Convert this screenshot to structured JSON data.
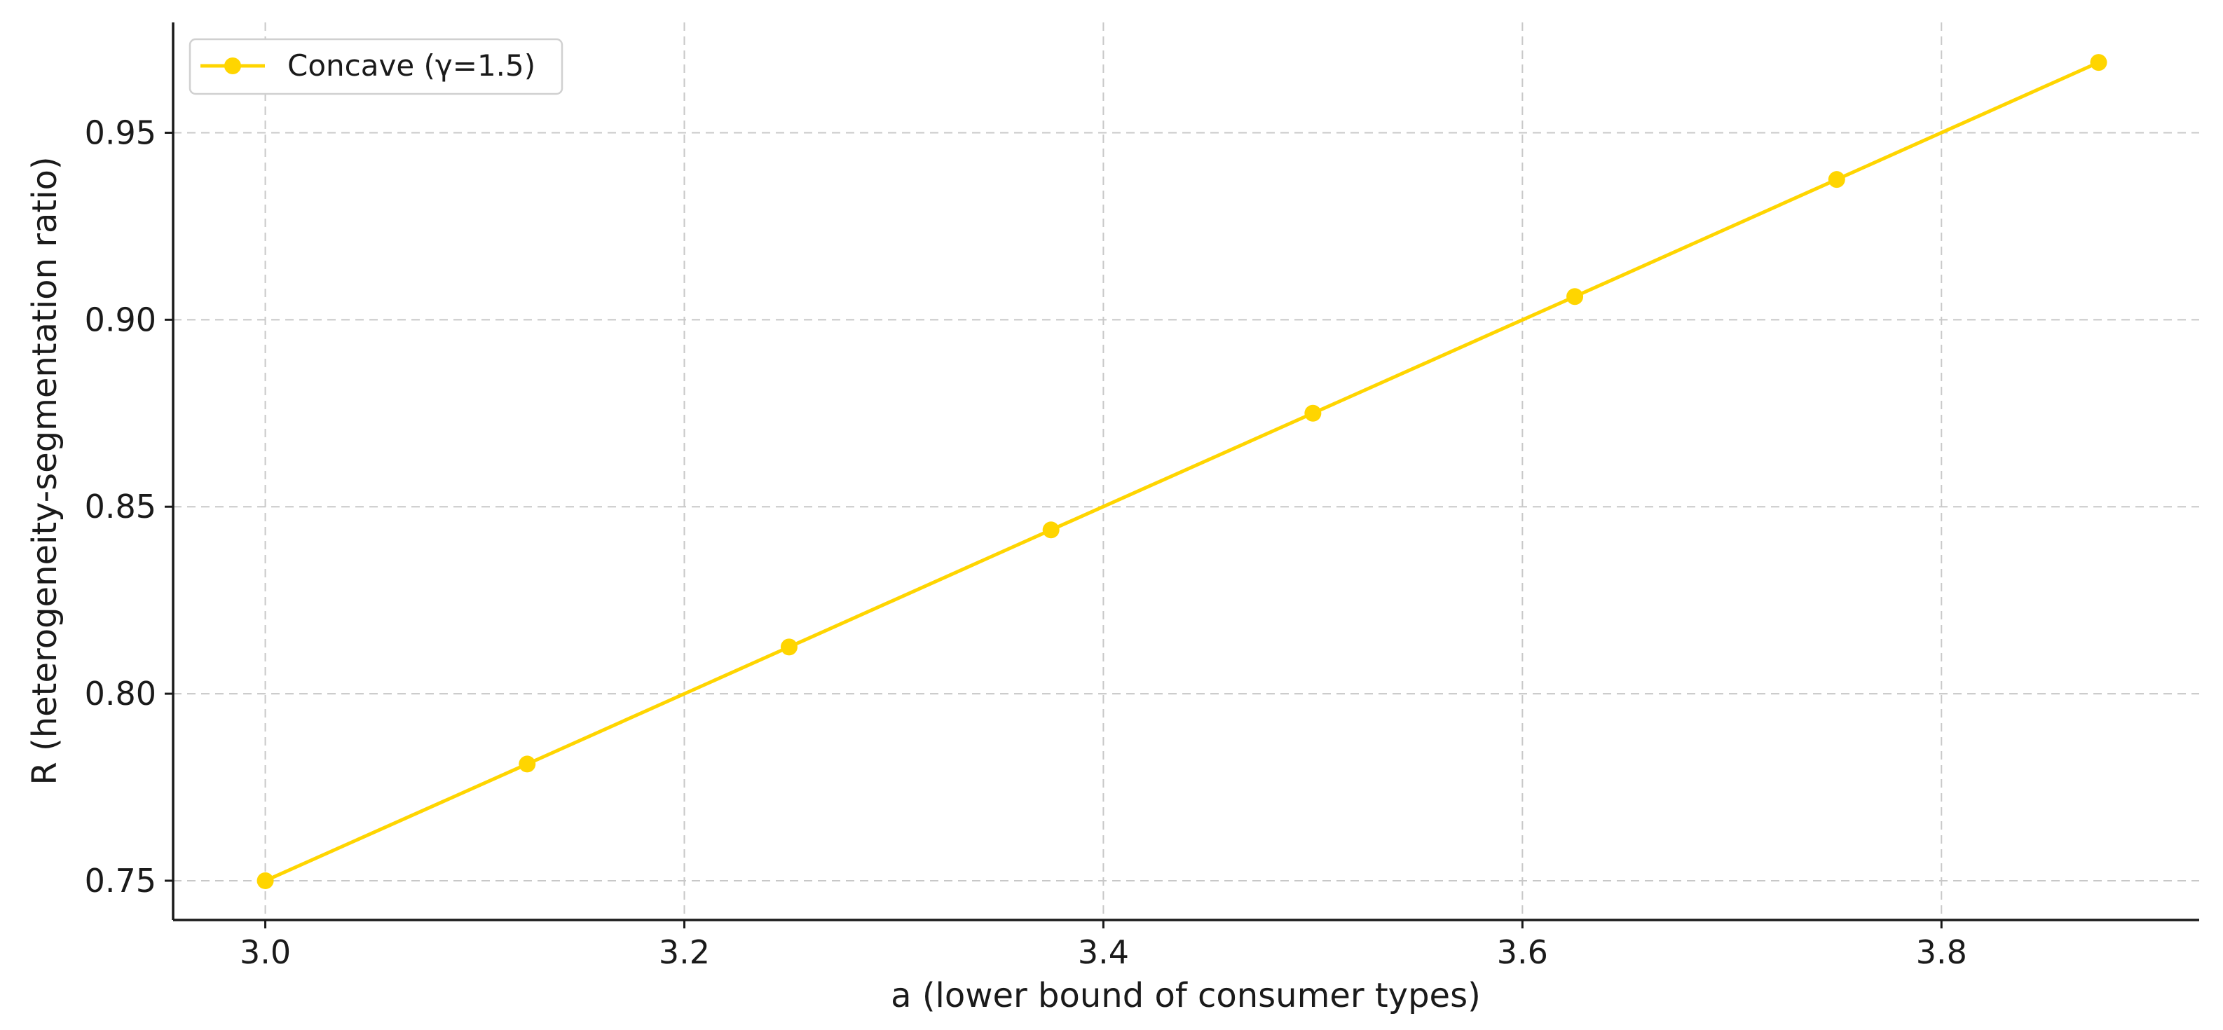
{
  "chart_data": {
    "type": "line",
    "title": "",
    "xlabel": "a (lower bound of consumer types)",
    "ylabel": "R (heterogeneity-segmentation ratio)",
    "xlim": [
      2.956,
      3.923
    ],
    "ylim": [
      0.7395,
      0.9795
    ],
    "xticks": [
      3.0,
      3.2,
      3.4,
      3.6,
      3.8
    ],
    "xtick_labels": [
      "3.0",
      "3.2",
      "3.4",
      "3.6",
      "3.8"
    ],
    "yticks": [
      0.75,
      0.8,
      0.85,
      0.9,
      0.95
    ],
    "ytick_labels": [
      "0.75",
      "0.80",
      "0.85",
      "0.90",
      "0.95"
    ],
    "grid": true,
    "legend_position": "top-left",
    "series": [
      {
        "name": "Concave (γ=1.5)",
        "color": "#FFD500",
        "marker": "circle",
        "x": [
          3.0,
          3.125,
          3.25,
          3.375,
          3.5,
          3.625,
          3.75,
          3.875
        ],
        "y": [
          0.75,
          0.7812,
          0.8125,
          0.8438,
          0.875,
          0.9062,
          0.9375,
          0.9688
        ]
      }
    ]
  }
}
